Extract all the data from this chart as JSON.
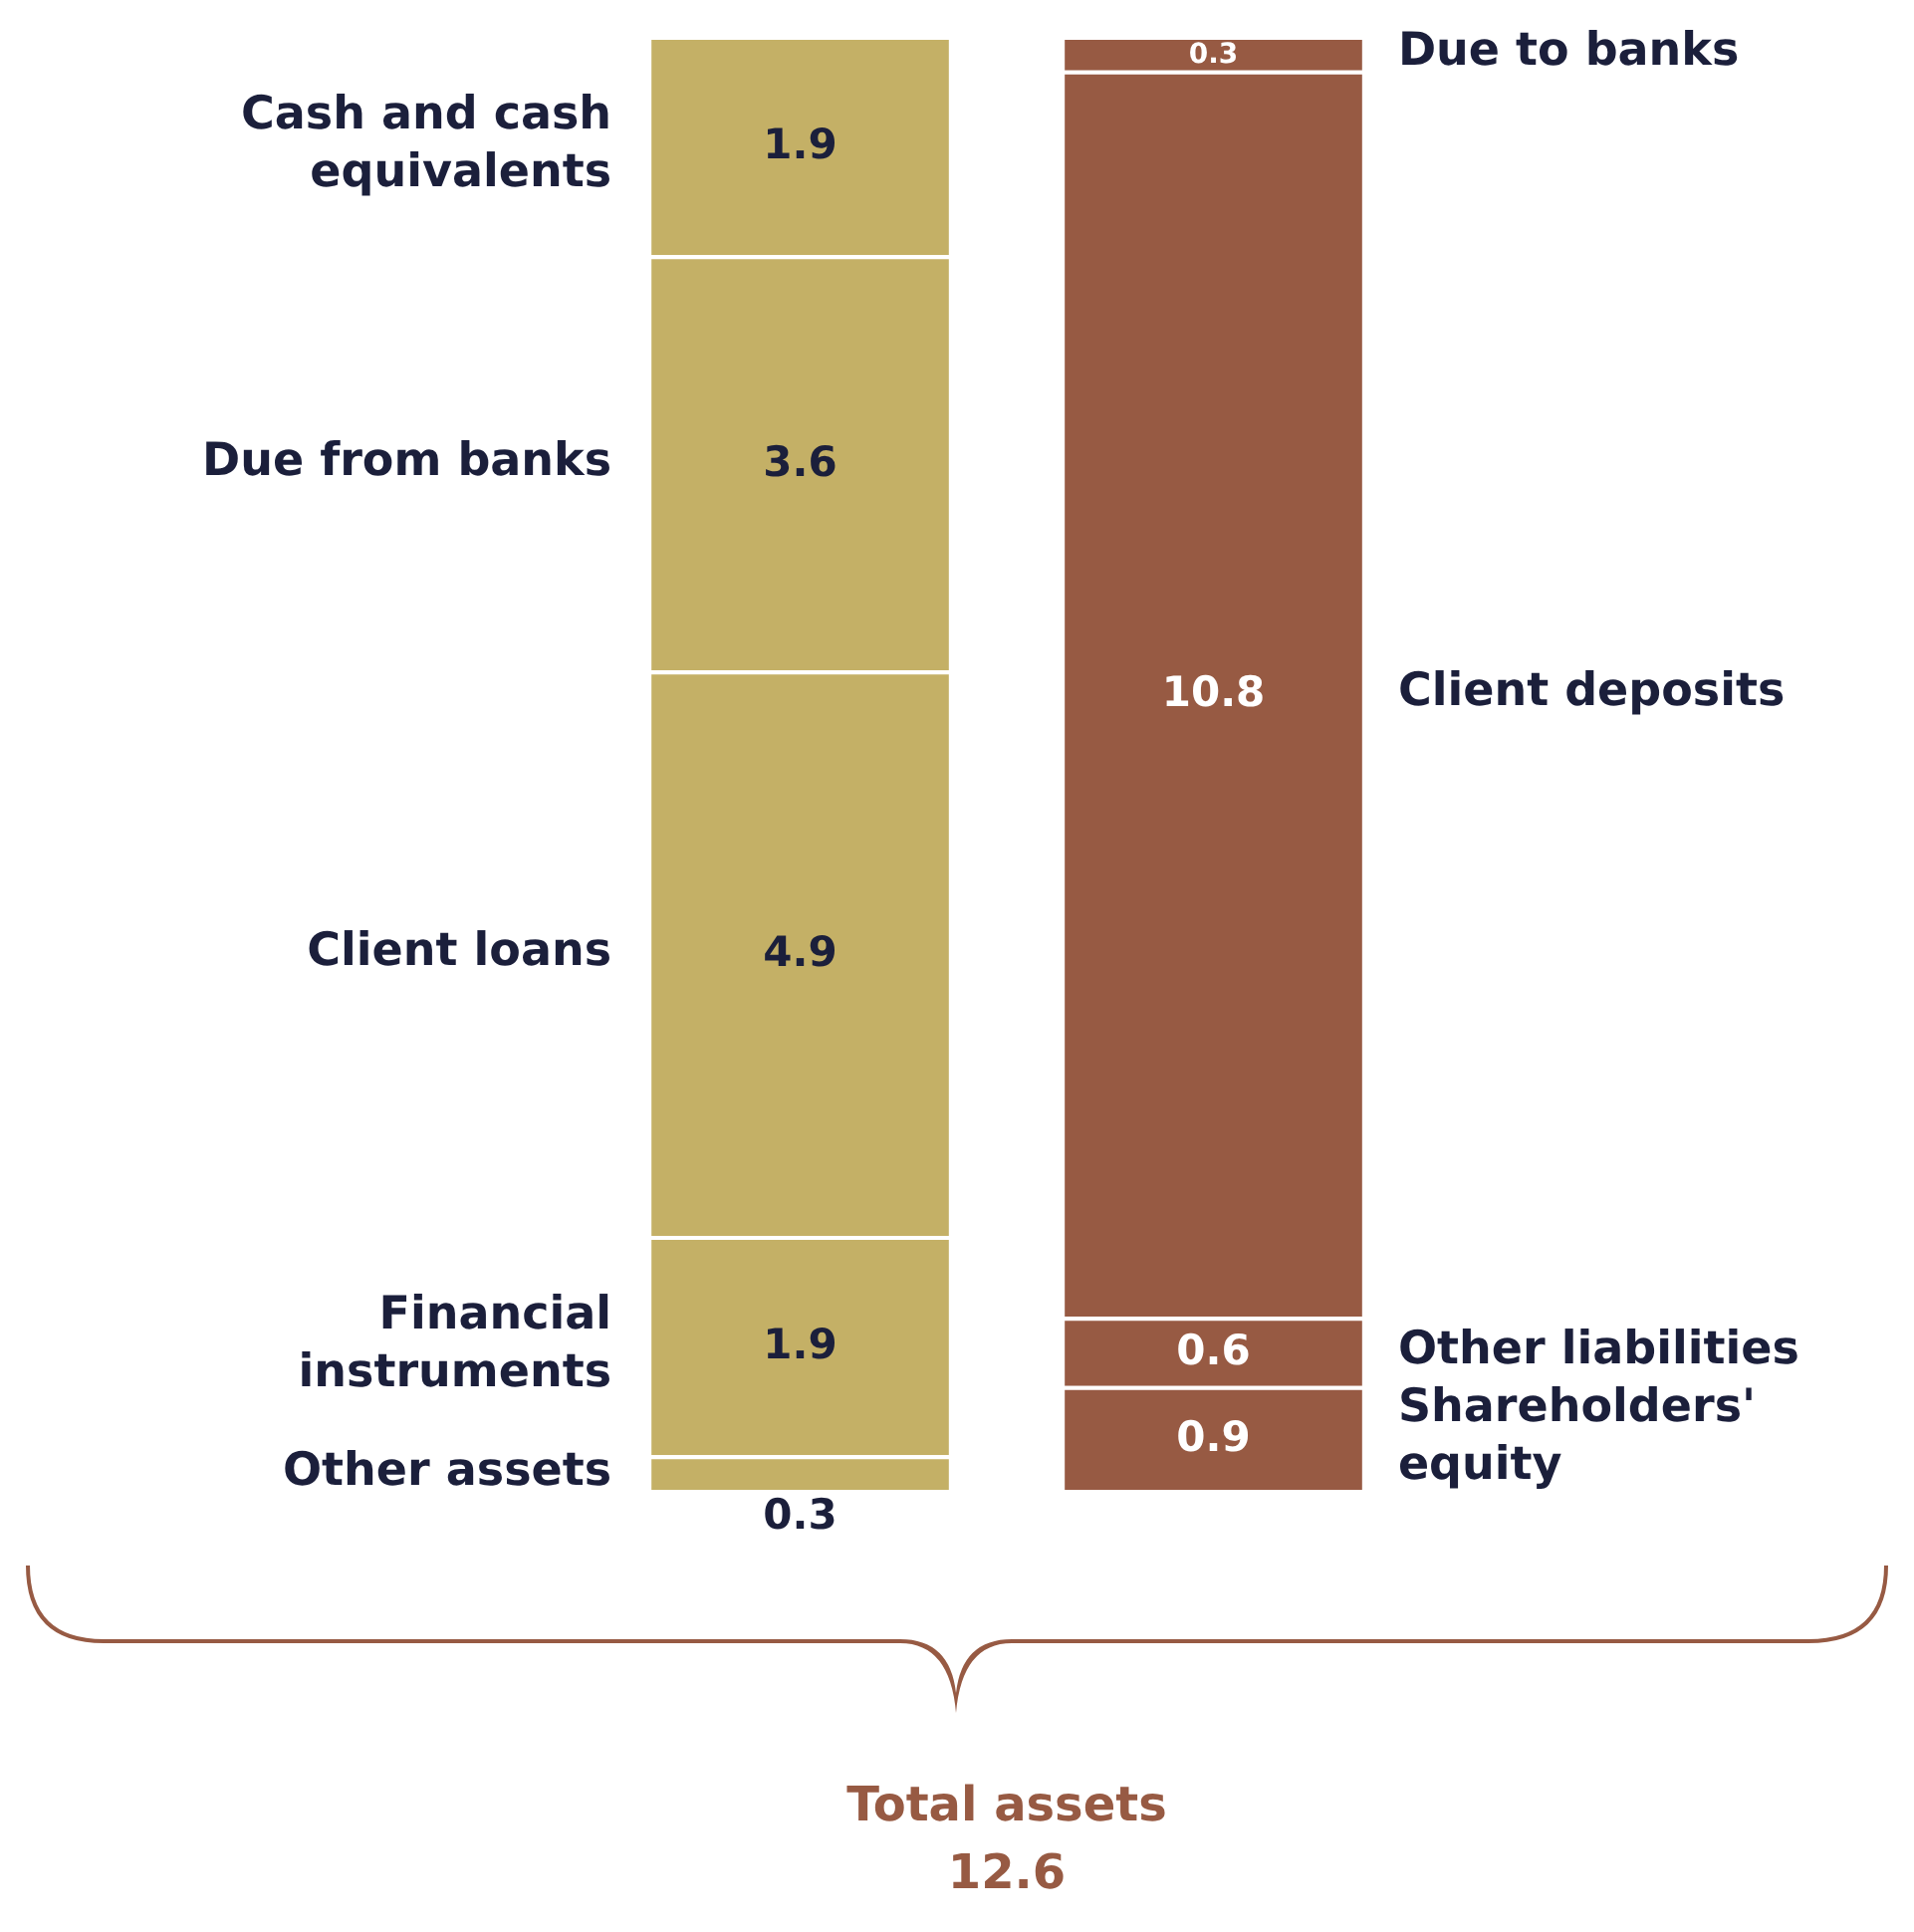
{
  "chart_data": {
    "type": "bar",
    "stacked": true,
    "categories": [
      null,
      null
    ],
    "data_labels": true,
    "tick_labels": false,
    "series": [
      {
        "name": "Other assets",
        "color": "#c4b066",
        "values": [
          0.3,
          null
        ]
      },
      {
        "name": "Financial instruments",
        "color": "#c4b066",
        "values": [
          1.9,
          null
        ]
      },
      {
        "name": "Client loans",
        "color": "#c4b066",
        "values": [
          4.9,
          null
        ]
      },
      {
        "name": "Due from banks",
        "color": "#c4b066",
        "values": [
          3.6,
          null
        ]
      },
      {
        "name": "Cash and cash equivalents",
        "color": "#c4b066",
        "values": [
          1.9,
          null
        ]
      },
      {
        "name": "Shareholders' equity",
        "color": "#975a43",
        "values": [
          null,
          0.9
        ]
      },
      {
        "name": "Other liabilities",
        "color": "#975a43",
        "values": [
          null,
          0.6
        ]
      },
      {
        "name": "Client deposits",
        "color": "#975a43",
        "values": [
          null,
          10.8
        ]
      },
      {
        "name": "Due to banks",
        "color": "#975a43",
        "values": [
          null,
          0.3
        ]
      }
    ],
    "annotations": [
      "Total assets",
      "12.6"
    ]
  }
}
